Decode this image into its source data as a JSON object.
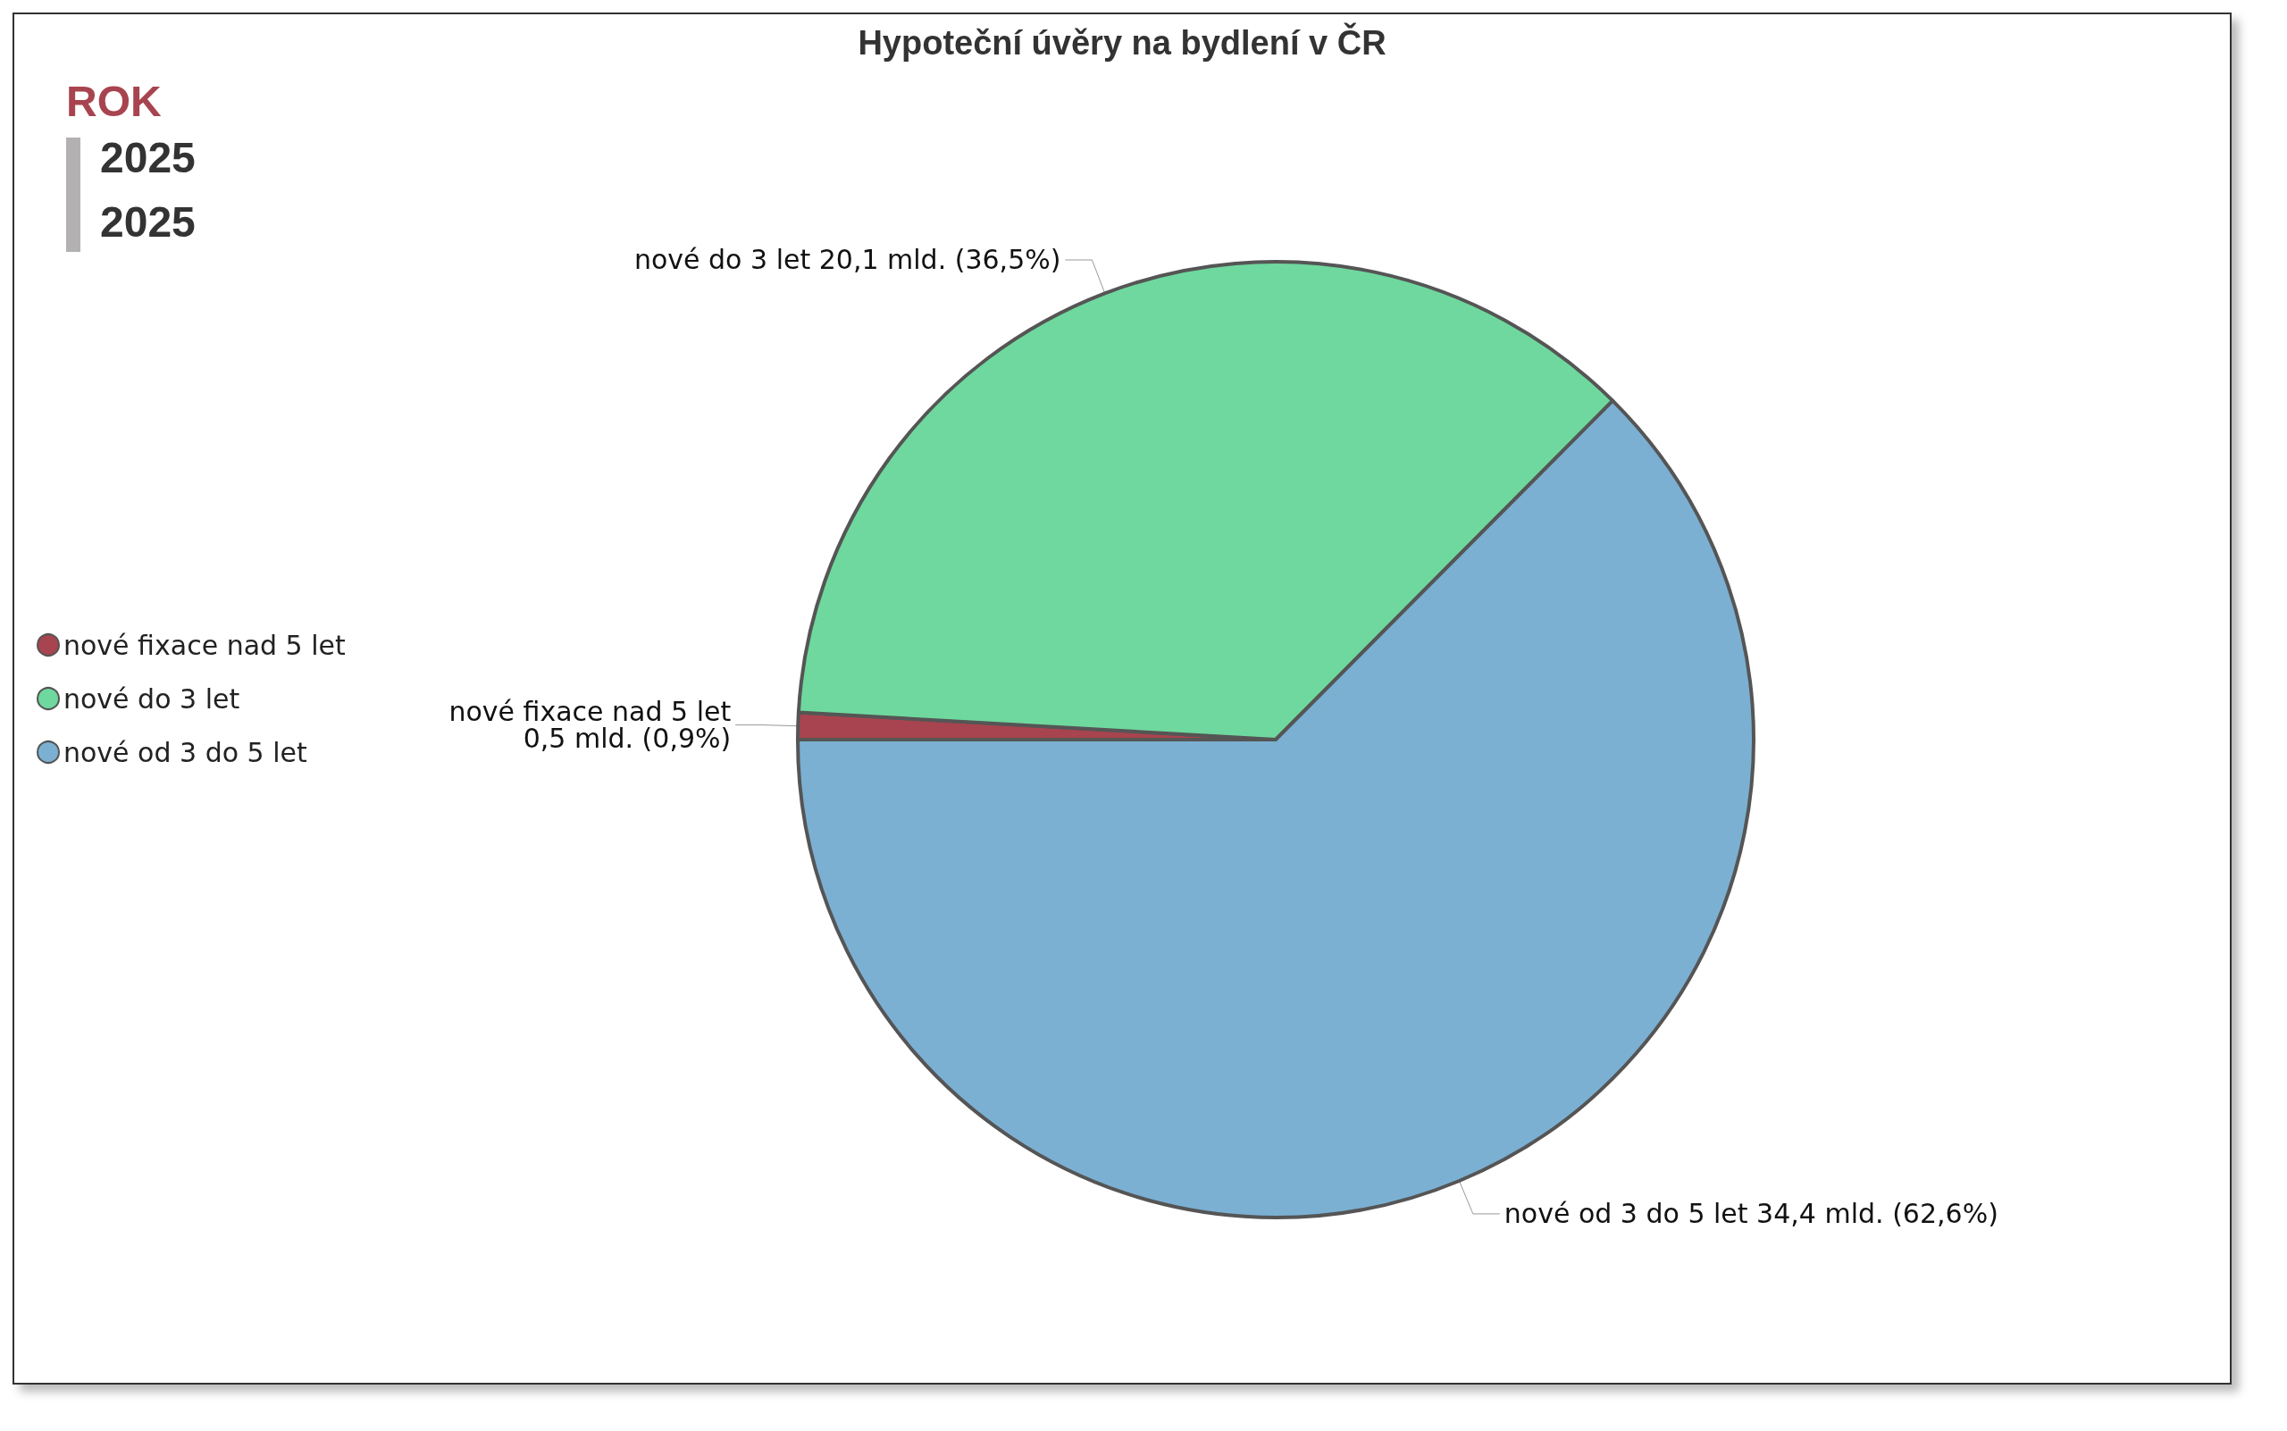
{
  "chart_data": {
    "type": "pie",
    "title": "Hypoteční úvěry na bydlení v ČR",
    "categories": [
      "nové fixace nad 5 let",
      "nové do 3 let",
      "nové od 3 do 5 let"
    ],
    "values": [
      0.5,
      20.1,
      34.4
    ],
    "value_labels": [
      "0,5 mld. (0,9%)",
      "20,1 mld. (36,5%)",
      "34,4 mld. (62,6%)"
    ],
    "colors": [
      "#a8444f",
      "#6fd89e",
      "#7bb0d3"
    ],
    "legend": "left",
    "annotations": [
      "ROK",
      "2025",
      "2025"
    ]
  }
}
